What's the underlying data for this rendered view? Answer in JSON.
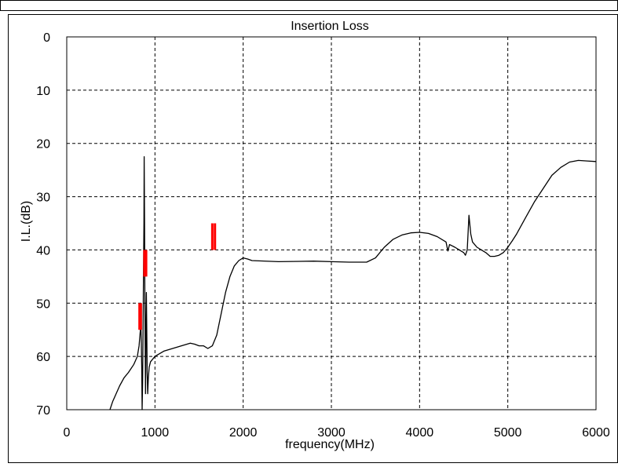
{
  "chart_data": {
    "type": "line",
    "title": "Insertion Loss",
    "xlabel": "frequency(MHz)",
    "ylabel": "I.L.(dB)",
    "xlim": [
      0,
      6000
    ],
    "ylim": [
      0,
      70
    ],
    "y_inverted": true,
    "xticks": [
      0,
      1000,
      2000,
      3000,
      4000,
      5000,
      6000
    ],
    "yticks": [
      0,
      10,
      20,
      30,
      40,
      50,
      60,
      70
    ],
    "grid": true,
    "grid_style": "dashed",
    "legend": "none",
    "series": [
      {
        "color": "#000000",
        "points": [
          [
            490,
            70
          ],
          [
            520,
            68.5
          ],
          [
            560,
            67
          ],
          [
            600,
            65.5
          ],
          [
            650,
            64
          ],
          [
            700,
            63
          ],
          [
            760,
            61.5
          ],
          [
            800,
            60
          ],
          [
            820,
            58
          ],
          [
            830,
            56
          ],
          [
            840,
            54
          ],
          [
            845,
            57
          ],
          [
            850,
            62
          ],
          [
            855,
            70
          ],
          [
            860,
            65
          ],
          [
            865,
            55
          ],
          [
            870,
            45
          ],
          [
            875,
            35
          ],
          [
            878,
            22.5
          ],
          [
            882,
            35
          ],
          [
            886,
            50
          ],
          [
            890,
            60
          ],
          [
            893,
            67
          ],
          [
            896,
            60
          ],
          [
            900,
            52
          ],
          [
            903,
            48
          ],
          [
            907,
            55
          ],
          [
            912,
            63
          ],
          [
            918,
            67
          ],
          [
            925,
            64
          ],
          [
            935,
            62
          ],
          [
            950,
            61
          ],
          [
            1000,
            60
          ],
          [
            1100,
            59
          ],
          [
            1200,
            58.5
          ],
          [
            1300,
            58
          ],
          [
            1400,
            57.5
          ],
          [
            1450,
            57.7
          ],
          [
            1500,
            58
          ],
          [
            1550,
            58
          ],
          [
            1600,
            58.5
          ],
          [
            1650,
            58
          ],
          [
            1700,
            56
          ],
          [
            1750,
            52
          ],
          [
            1800,
            48
          ],
          [
            1850,
            45
          ],
          [
            1900,
            43
          ],
          [
            1950,
            42
          ],
          [
            2000,
            41.5
          ],
          [
            2050,
            41.7
          ],
          [
            2100,
            42
          ],
          [
            2400,
            42.2
          ],
          [
            2800,
            42.1
          ],
          [
            3000,
            42.2
          ],
          [
            3200,
            42.3
          ],
          [
            3400,
            42.3
          ],
          [
            3500,
            41.5
          ],
          [
            3600,
            39.5
          ],
          [
            3700,
            38
          ],
          [
            3800,
            37.2
          ],
          [
            3900,
            36.8
          ],
          [
            4000,
            36.7
          ],
          [
            4100,
            36.9
          ],
          [
            4200,
            37.5
          ],
          [
            4300,
            38.5
          ],
          [
            4320,
            40.2
          ],
          [
            4340,
            39
          ],
          [
            4400,
            39.5
          ],
          [
            4450,
            40
          ],
          [
            4500,
            40.5
          ],
          [
            4520,
            41
          ],
          [
            4540,
            40
          ],
          [
            4560,
            33.5
          ],
          [
            4580,
            37
          ],
          [
            4600,
            38.5
          ],
          [
            4650,
            39.5
          ],
          [
            4700,
            40
          ],
          [
            4750,
            40.5
          ],
          [
            4800,
            41.2
          ],
          [
            4850,
            41.2
          ],
          [
            4900,
            41
          ],
          [
            4950,
            40.5
          ],
          [
            5000,
            39.5
          ],
          [
            5050,
            38.3
          ],
          [
            5100,
            37
          ],
          [
            5200,
            34
          ],
          [
            5300,
            31
          ],
          [
            5400,
            28.5
          ],
          [
            5500,
            26
          ],
          [
            5600,
            24.5
          ],
          [
            5700,
            23.5
          ],
          [
            5800,
            23.2
          ],
          [
            5900,
            23.3
          ],
          [
            6000,
            23.4
          ]
        ]
      }
    ],
    "markers": [
      {
        "color": "#ff0000",
        "x": [
          825,
          840
        ],
        "y": [
          50,
          55
        ]
      },
      {
        "color": "#ff0000",
        "x": [
          880,
          900
        ],
        "y": [
          40,
          45
        ]
      },
      {
        "color": "#ff0000",
        "x": [
          1650,
          1680
        ],
        "y": [
          35,
          40
        ]
      }
    ]
  }
}
